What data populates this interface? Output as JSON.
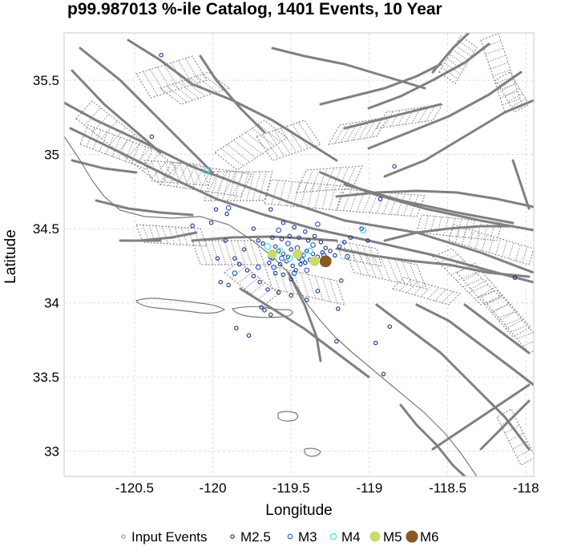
{
  "chart_data": {
    "type": "scatter",
    "title": "p99.987013 %-ile Catalog, 1401 Events, 10 Year",
    "xlabel": "Longitude",
    "ylabel": "Latitude",
    "xlim": [
      -120.95,
      -117.95
    ],
    "ylim": [
      32.83,
      35.82
    ],
    "xticks": [
      -120.5,
      -120,
      -119.5,
      -119,
      -118.5,
      -118
    ],
    "xtick_labels": [
      "-120.5",
      "-120",
      "-119.5",
      "-119",
      "-118.5",
      "-118"
    ],
    "yticks": [
      33,
      33.5,
      34,
      34.5,
      35,
      35.5
    ],
    "ytick_labels": [
      "33",
      "33.5",
      "34",
      "34.5",
      "35",
      "35.5"
    ],
    "grid": true,
    "legend_position": "bottom",
    "legend": [
      {
        "label": "Input Events",
        "color": "#999999",
        "kind": "input"
      },
      {
        "label": "M2.5",
        "color": "#1a2f8f",
        "kind": "m25"
      },
      {
        "label": "M3",
        "color": "#2255d0",
        "kind": "m3"
      },
      {
        "label": "M4",
        "color": "#3fd8e6",
        "kind": "m4"
      },
      {
        "label": "M5",
        "color": "#c8dc6c",
        "kind": "m5"
      },
      {
        "label": "M6",
        "color": "#8a5a24",
        "kind": "m6"
      }
    ],
    "series": [
      {
        "name": "M2.5",
        "color": "#1a2f8f",
        "points": [
          [
            -120.33,
            35.67
          ],
          [
            -120.39,
            35.12
          ],
          [
            -119.71,
            34.42
          ],
          [
            -119.68,
            34.4
          ],
          [
            -119.6,
            34.38
          ],
          [
            -119.58,
            34.35
          ],
          [
            -119.55,
            34.33
          ],
          [
            -119.52,
            34.31
          ],
          [
            -119.5,
            34.36
          ],
          [
            -119.47,
            34.34
          ],
          [
            -119.45,
            34.3
          ],
          [
            -119.42,
            34.32
          ],
          [
            -119.4,
            34.35
          ],
          [
            -119.38,
            34.29
          ],
          [
            -119.36,
            34.33
          ],
          [
            -119.33,
            34.31
          ],
          [
            -119.3,
            34.34
          ],
          [
            -119.62,
            34.3
          ],
          [
            -119.64,
            34.27
          ],
          [
            -119.57,
            34.26
          ],
          [
            -119.53,
            34.28
          ],
          [
            -119.49,
            34.25
          ],
          [
            -119.44,
            34.26
          ],
          [
            -119.41,
            34.27
          ],
          [
            -119.6,
            34.2
          ],
          [
            -119.55,
            34.19
          ],
          [
            -119.5,
            34.16
          ],
          [
            -119.47,
            34.22
          ],
          [
            -119.62,
            34.44
          ],
          [
            -119.56,
            34.43
          ],
          [
            -119.51,
            34.45
          ],
          [
            -119.45,
            34.44
          ],
          [
            -119.39,
            34.42
          ],
          [
            -119.35,
            34.45
          ],
          [
            -119.31,
            34.41
          ],
          [
            -119.28,
            34.37
          ],
          [
            -119.25,
            34.35
          ],
          [
            -119.22,
            34.32
          ],
          [
            -119.19,
            34.38
          ],
          [
            -119.16,
            34.41
          ],
          [
            -119.12,
            34.44
          ],
          [
            -119.86,
            34.3
          ],
          [
            -119.83,
            34.26
          ],
          [
            -119.78,
            34.22
          ],
          [
            -119.74,
            34.18
          ],
          [
            -119.7,
            34.14
          ],
          [
            -119.9,
            34.12
          ],
          [
            -119.95,
            34.14
          ],
          [
            -119.65,
            34.09
          ],
          [
            -119.58,
            34.07
          ],
          [
            -119.5,
            34.05
          ],
          [
            -119.85,
            33.83
          ],
          [
            -119.77,
            33.78
          ],
          [
            -119.67,
            33.95
          ],
          [
            -119.63,
            33.92
          ],
          [
            -119.4,
            34.02
          ],
          [
            -119.33,
            34.08
          ],
          [
            -119.18,
            34.15
          ],
          [
            -119.2,
            33.96
          ],
          [
            -119.21,
            33.74
          ],
          [
            -118.96,
            33.73
          ],
          [
            -118.91,
            33.52
          ],
          [
            -118.87,
            33.84
          ],
          [
            -118.93,
            34.7
          ],
          [
            -119.01,
            34.42
          ],
          [
            -119.05,
            34.5
          ],
          [
            -118.84,
            34.92
          ],
          [
            -120.13,
            34.52
          ],
          [
            -120.01,
            34.54
          ],
          [
            -119.91,
            34.6
          ],
          [
            -119.98,
            34.63
          ],
          [
            -119.92,
            34.42
          ],
          [
            -119.74,
            34.5
          ],
          [
            -119.55,
            34.54
          ],
          [
            -119.63,
            34.63
          ],
          [
            -119.48,
            34.51
          ],
          [
            -119.41,
            34.48
          ],
          [
            -118.07,
            34.17
          ],
          [
            -119.97,
            34.3
          ],
          [
            -119.69,
            33.97
          ],
          [
            -119.8,
            34.36
          ]
        ]
      },
      {
        "name": "M3",
        "color": "#2255d0",
        "points": [
          [
            -119.9,
            34.64
          ],
          [
            -119.58,
            34.49
          ],
          [
            -119.52,
            34.4
          ],
          [
            -119.46,
            34.37
          ],
          [
            -119.36,
            34.39
          ],
          [
            -119.29,
            34.32
          ],
          [
            -119.63,
            34.31
          ],
          [
            -119.56,
            34.3
          ],
          [
            -119.43,
            34.29
          ],
          [
            -119.34,
            34.27
          ],
          [
            -119.61,
            34.24
          ],
          [
            -119.48,
            34.2
          ],
          [
            -119.71,
            34.24
          ],
          [
            -119.4,
            34.22
          ],
          [
            -119.26,
            34.29
          ],
          [
            -119.14,
            34.31
          ],
          [
            -119.86,
            34.2
          ],
          [
            -119.33,
            34.53
          ]
        ]
      },
      {
        "name": "M4",
        "color": "#3fd8e6",
        "points": [
          [
            -120.04,
            34.89
          ],
          [
            -119.57,
            34.35
          ],
          [
            -119.43,
            34.32
          ],
          [
            -119.38,
            34.35
          ],
          [
            -119.51,
            34.3
          ],
          [
            -119.04,
            34.49
          ],
          [
            -119.65,
            34.38
          ]
        ]
      },
      {
        "name": "M5",
        "color": "#c8dc6c",
        "points": [
          [
            -119.62,
            34.33
          ],
          [
            -119.46,
            34.33
          ],
          [
            -119.35,
            34.28
          ]
        ]
      },
      {
        "name": "M6",
        "color": "#8a5a24",
        "points": [
          [
            -119.28,
            34.28
          ]
        ]
      }
    ]
  }
}
